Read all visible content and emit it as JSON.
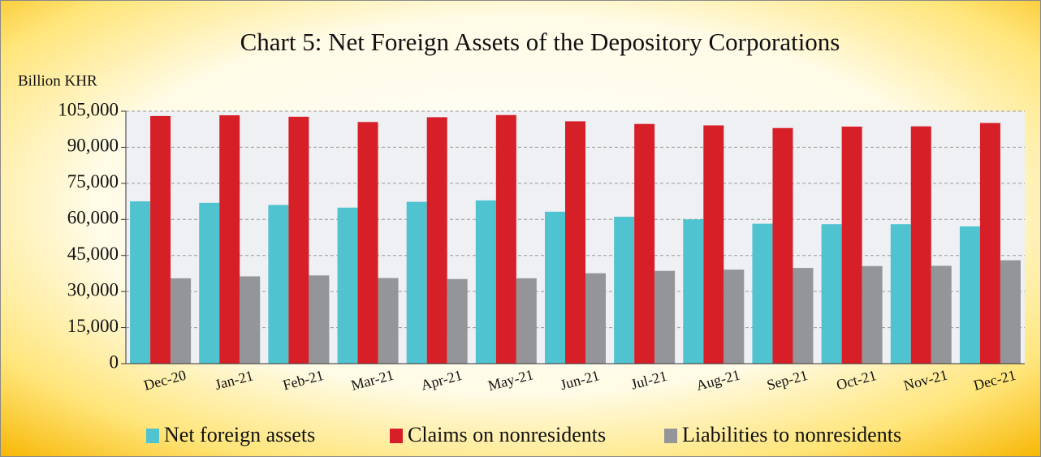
{
  "chart_data": {
    "type": "bar",
    "title": "Chart 5: Net Foreign Assets of the Depository Corporations",
    "y_label": "Billion KHR",
    "categories": [
      "Dec-20",
      "Jan-21",
      "Feb-21",
      "Mar-21",
      "Apr-21",
      "May-21",
      "Jun-21",
      "Jul-21",
      "Aug-21",
      "Sep-21",
      "Oct-21",
      "Nov-21",
      "Dec-21"
    ],
    "series": [
      {
        "name": "Net foreign assets",
        "color": "#4fc3cf",
        "values": [
          67500,
          66900,
          66000,
          64900,
          67300,
          67900,
          63200,
          61100,
          60000,
          58200,
          58000,
          58000,
          57100
        ]
      },
      {
        "name": "Claims on nonresidents",
        "color": "#d71f27",
        "values": [
          103000,
          103300,
          102700,
          100500,
          102500,
          103400,
          100800,
          99700,
          99100,
          98000,
          98600,
          98700,
          100100
        ]
      },
      {
        "name": "Liabilities to nonresidents",
        "color": "#939598",
        "values": [
          35500,
          36300,
          36700,
          35600,
          35200,
          35500,
          37600,
          38600,
          39100,
          39800,
          40600,
          40700,
          43000
        ]
      }
    ],
    "ylim": [
      0,
      105000
    ],
    "yticks": [
      0,
      {
        "value": 15000,
        "label": "15,000"
      },
      {
        "value": 30000,
        "label": "30,000"
      },
      {
        "value": 45000,
        "label": "45,000"
      },
      {
        "value": 60000,
        "label": "60,000"
      },
      {
        "value": 75000,
        "label": "75,000"
      },
      {
        "value": 90000,
        "label": "90,000"
      },
      {
        "value": 105000,
        "label": "105,000"
      }
    ],
    "grid": true,
    "legend": "bottom"
  }
}
